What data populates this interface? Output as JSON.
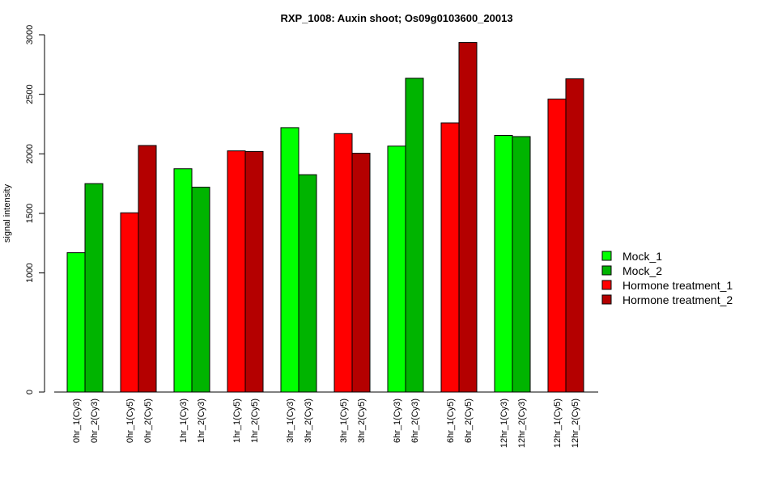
{
  "chart_data": {
    "type": "bar",
    "title": "RXP_1008: Auxin shoot; Os09g0103600_20013",
    "xlabel": "",
    "ylabel": "signal intensity",
    "ylim": [
      0,
      3000
    ],
    "y_ticks": [
      0,
      1000,
      1500,
      2000,
      2500,
      3000
    ],
    "grid": false,
    "legend_position": "right",
    "series": [
      {
        "name": "Mock_1",
        "color": "#00ff00"
      },
      {
        "name": "Mock_2",
        "color": "#00b400"
      },
      {
        "name": "Hormone treatment_1",
        "color": "#ff0000"
      },
      {
        "name": "Hormone treatment_2",
        "color": "#b40000"
      }
    ],
    "groups": [
      {
        "bars": [
          {
            "label": "0hr_1(Cy3)",
            "value": 1170,
            "series": 0
          },
          {
            "label": "0hr_2(Cy3)",
            "value": 1750,
            "series": 1
          }
        ]
      },
      {
        "bars": [
          {
            "label": "0hr_1(Cy5)",
            "value": 1505,
            "series": 2
          },
          {
            "label": "0hr_2(Cy5)",
            "value": 2070,
            "series": 3
          }
        ]
      },
      {
        "bars": [
          {
            "label": "1hr_1(Cy3)",
            "value": 1875,
            "series": 0
          },
          {
            "label": "1hr_2(Cy3)",
            "value": 1720,
            "series": 1
          }
        ]
      },
      {
        "bars": [
          {
            "label": "1hr_1(Cy5)",
            "value": 2025,
            "series": 2
          },
          {
            "label": "1hr_2(Cy5)",
            "value": 2020,
            "series": 3
          }
        ]
      },
      {
        "bars": [
          {
            "label": "3hr_1(Cy3)",
            "value": 2220,
            "series": 0
          },
          {
            "label": "3hr_2(Cy3)",
            "value": 1825,
            "series": 1
          }
        ]
      },
      {
        "bars": [
          {
            "label": "3hr_1(Cy5)",
            "value": 2170,
            "series": 2
          },
          {
            "label": "3hr_2(Cy5)",
            "value": 2005,
            "series": 3
          }
        ]
      },
      {
        "bars": [
          {
            "label": "6hr_1(Cy3)",
            "value": 2065,
            "series": 0
          },
          {
            "label": "6hr_2(Cy3)",
            "value": 2635,
            "series": 1
          }
        ]
      },
      {
        "bars": [
          {
            "label": "6hr_1(Cy5)",
            "value": 2260,
            "series": 2
          },
          {
            "label": "6hr_2(Cy5)",
            "value": 2935,
            "series": 3
          }
        ]
      },
      {
        "bars": [
          {
            "label": "12hr_1(Cy3)",
            "value": 2155,
            "series": 0
          },
          {
            "label": "12hr_2(Cy3)",
            "value": 2145,
            "series": 1
          }
        ]
      },
      {
        "bars": [
          {
            "label": "12hr_1(Cy5)",
            "value": 2460,
            "series": 2
          },
          {
            "label": "12hr_2(Cy5)",
            "value": 2630,
            "series": 3
          }
        ]
      }
    ]
  }
}
